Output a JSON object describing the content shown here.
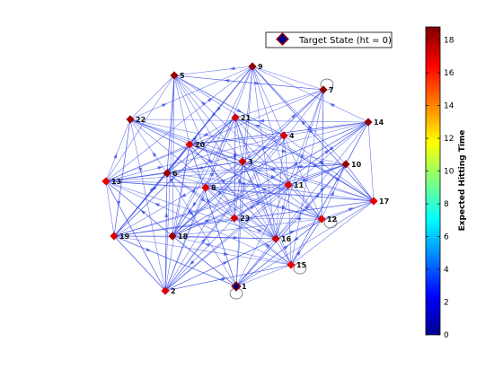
{
  "chart_data": {
    "type": "graph",
    "legend": {
      "label": "Target State (ht = 0)",
      "placement": "top-right"
    },
    "colorbar": {
      "label": "Expected Hitting Time",
      "min": 0,
      "max": 18.8,
      "colormap": "jet",
      "ticks": [
        "0",
        "2",
        "4",
        "6",
        "8",
        "10",
        "12",
        "14",
        "16",
        "18"
      ]
    },
    "edge_color": "#3a4ee8",
    "nodes": [
      {
        "id": "1",
        "ht": 0
      },
      {
        "id": "2",
        "ht": 17.0
      },
      {
        "id": "3",
        "ht": 17.4
      },
      {
        "id": "4",
        "ht": 17.2
      },
      {
        "id": "5",
        "ht": 18.4
      },
      {
        "id": "6",
        "ht": 18.3
      },
      {
        "id": "7",
        "ht": 18.5
      },
      {
        "id": "8",
        "ht": 17.0
      },
      {
        "id": "9",
        "ht": 18.5
      },
      {
        "id": "10",
        "ht": 18.4
      },
      {
        "id": "11",
        "ht": 17.1
      },
      {
        "id": "12",
        "ht": 16.9
      },
      {
        "id": "13",
        "ht": 16.8
      },
      {
        "id": "14",
        "ht": 18.5
      },
      {
        "id": "15",
        "ht": 16.7
      },
      {
        "id": "16",
        "ht": 17.5
      },
      {
        "id": "17",
        "ht": 16.9
      },
      {
        "id": "18",
        "ht": 18.3
      },
      {
        "id": "19",
        "ht": 17.1
      },
      {
        "id": "20",
        "ht": 17.0
      },
      {
        "id": "21",
        "ht": 17.3
      },
      {
        "id": "22",
        "ht": 18.2
      },
      {
        "id": "23",
        "ht": 17.2
      }
    ]
  }
}
